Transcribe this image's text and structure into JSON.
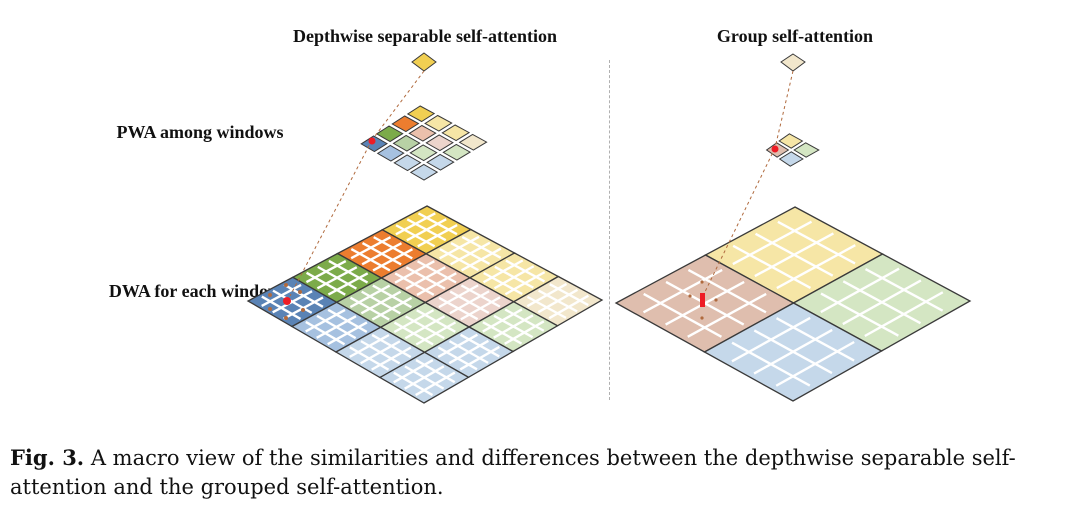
{
  "panels": {
    "left": {
      "title": "Depthwise separable self-attention",
      "pwa_label": "PWA among windows",
      "dwa_label": "DWA for each window"
    },
    "right": {
      "title": "Group self-attention"
    }
  },
  "caption": {
    "figure_label": "Fig. 3.",
    "text": "A macro view of the similarities and differences between the depthwise separable self-attention and the grouped self-attention."
  },
  "palette": {
    "yellow": "#f1cf52",
    "orange": "#ec7d2f",
    "pale_yellow": "#f6e6a6",
    "cream": "#f2e7cc",
    "peach": "#ebc0ac",
    "pink_beige": "#ecd4cc",
    "light_green": "#d4e6c3",
    "sage": "#b8d1a5",
    "green": "#7cab4a",
    "light_blue": "#c5d8ea",
    "blue": "#a6c1e0",
    "dark_blue": "#5a83b5",
    "rose_tan": "#dfbeae",
    "highlight": "#ee1c25"
  }
}
